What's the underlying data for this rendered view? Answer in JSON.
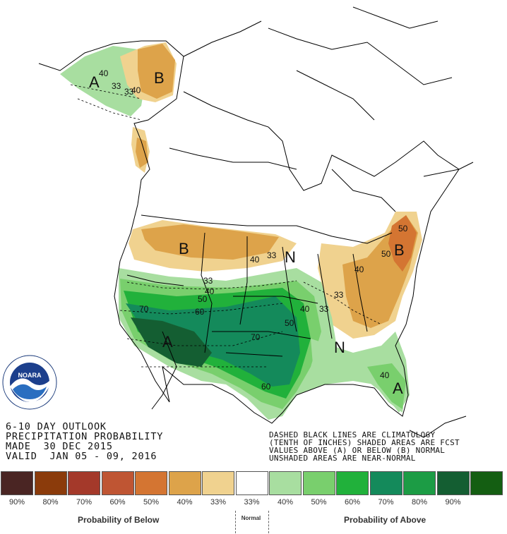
{
  "title_lines": [
    "6-10 DAY OUTLOOK",
    "PRECIPITATION PROBABILITY",
    "MADE  30 DEC 2015",
    "VALID  JAN 05 - 09, 2016"
  ],
  "notes": [
    "DASHED BLACK LINES ARE CLIMATOLOGY",
    "(TENTH OF INCHES) SHADED AREAS ARE FCST",
    "VALUES ABOVE (A) OR BELOW (B) NORMAL",
    "UNSHADED AREAS ARE NEAR-NORMAL"
  ],
  "logo": {
    "text": "NOARA",
    "ring_text": "NATIONAL OCEANIC AND ATMOSPHERIC ADMINISTRATION · U.S. DEPARTMENT OF COMMERCE"
  },
  "map_labels": {
    "alaska_A": "A",
    "alaska_40": "40",
    "alaska_33a": "33",
    "alaska_33b": "33",
    "alaska_40b": "40",
    "yukon_B": "B",
    "nw_B": "B",
    "ne_B": "B",
    "sw_A": "A",
    "se_A": "A",
    "n_mid": "N",
    "n_se": "N",
    "c33a": "33",
    "c40a": "40",
    "c33b": "33",
    "c40b": "40",
    "c50a": "50",
    "c60a": "60",
    "c70a": "70",
    "c70b": "70",
    "c60b": "60",
    "c50b": "50",
    "c40c": "40",
    "c33c": "33",
    "c33d": "33",
    "c40d": "40",
    "c50c": "50",
    "c40e": "40",
    "c50d": "50",
    "c40f": "40"
  },
  "legend": {
    "below_caption": "Probability of Below",
    "normal_caption": "Normal",
    "above_caption": "Probability of Above",
    "items": [
      {
        "pct": "90%",
        "color": "#4a2523"
      },
      {
        "pct": "80%",
        "color": "#8b3b0b"
      },
      {
        "pct": "70%",
        "color": "#a4392a"
      },
      {
        "pct": "60%",
        "color": "#bf5533"
      },
      {
        "pct": "50%",
        "color": "#d47532"
      },
      {
        "pct": "40%",
        "color": "#dda34a"
      },
      {
        "pct": "33%",
        "color": "#f0d28f"
      },
      {
        "pct": "33%",
        "color": "#ffffff"
      },
      {
        "pct": "40%",
        "color": "#a8dea0"
      },
      {
        "pct": "50%",
        "color": "#79cf6d"
      },
      {
        "pct": "60%",
        "color": "#21b13b"
      },
      {
        "pct": "70%",
        "color": "#148a5b"
      },
      {
        "pct": "80%",
        "color": "#1c9c45"
      },
      {
        "pct": "90%",
        "color": "#145e32"
      },
      {
        "pct": "",
        "color": "#145e12"
      }
    ]
  }
}
